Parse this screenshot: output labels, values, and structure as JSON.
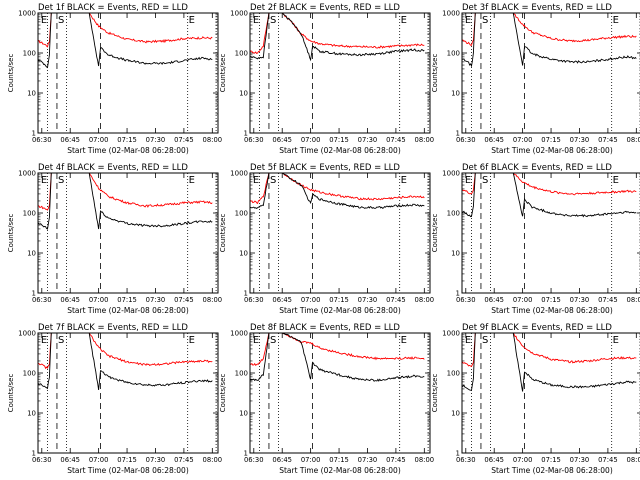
{
  "figure": {
    "background": "#ffffff"
  },
  "chart_data": [
    {
      "type": "line",
      "title": "Det 1f BLACK = Events, RED = LLD",
      "xlabel": "Start Time (02-Mar-08 06:28:00)",
      "ylabel": "Counts/sec",
      "xlim": [
        "06:28",
        "08:03"
      ],
      "ylim": [
        1,
        1000
      ],
      "yscale": "log",
      "xticks": [
        "06:30",
        "06:45",
        "07:00",
        "07:15",
        "07:30",
        "07:45",
        "08:00"
      ],
      "yticks": [
        "1",
        "10",
        "100",
        "1000"
      ],
      "annotations": [
        "E",
        "S",
        "E"
      ],
      "series": [
        {
          "color": "#ff0000",
          "x": [
            "06:28",
            "06:30",
            "06:33",
            "06:34",
            "06:35",
            "06:40",
            "06:55",
            "07:00",
            "07:05",
            "07:15",
            "07:25",
            "07:35",
            "07:45",
            "07:55",
            "08:00"
          ],
          "y": [
            200,
            180,
            150,
            190,
            1000,
            1000,
            1000,
            470,
            320,
            220,
            190,
            200,
            230,
            240,
            235
          ]
        },
        {
          "color": "#000000",
          "x": [
            "06:28",
            "06:30",
            "06:33",
            "06:34",
            "06:35",
            "06:40",
            "06:55",
            "07:00",
            "07:01",
            "07:05",
            "07:15",
            "07:25",
            "07:35",
            "07:45",
            "07:55",
            "08:00"
          ],
          "y": [
            65,
            60,
            45,
            90,
            1000,
            1000,
            1000,
            45,
            140,
            90,
            65,
            55,
            55,
            65,
            75,
            70
          ]
        }
      ]
    },
    {
      "type": "line",
      "title": "Det 2f BLACK = Events, RED = LLD",
      "xlabel": "Start Time (02-Mar-08 06:28:00)",
      "ylabel": "Counts/sec",
      "xlim": [
        "06:28",
        "08:03"
      ],
      "ylim": [
        1,
        1000
      ],
      "yscale": "log",
      "xticks": [
        "06:30",
        "06:45",
        "07:00",
        "07:15",
        "07:30",
        "07:45",
        "08:00"
      ],
      "yticks": [
        "1",
        "10",
        "100",
        "1000"
      ],
      "annotations": [
        "E",
        "S",
        "E"
      ],
      "series": [
        {
          "color": "#ff0000",
          "x": [
            "06:28",
            "06:32",
            "06:35",
            "06:38",
            "06:41",
            "06:45",
            "06:50",
            "06:55",
            "07:00",
            "07:05",
            "07:15",
            "07:25",
            "07:35",
            "07:45",
            "07:55",
            "08:00"
          ],
          "y": [
            110,
            100,
            150,
            1000,
            1000,
            1000,
            600,
            300,
            200,
            170,
            150,
            145,
            140,
            150,
            160,
            160
          ]
        },
        {
          "color": "#000000",
          "x": [
            "06:28",
            "06:32",
            "06:35",
            "06:38",
            "06:41",
            "06:45",
            "06:50",
            "06:55",
            "07:00",
            "07:01",
            "07:05",
            "07:15",
            "07:25",
            "07:35",
            "07:45",
            "07:55",
            "08:00"
          ],
          "y": [
            80,
            75,
            80,
            1000,
            1000,
            1000,
            600,
            300,
            70,
            150,
            110,
            95,
            90,
            95,
            110,
            120,
            115
          ]
        }
      ]
    },
    {
      "type": "line",
      "title": "Det 3f BLACK = Events, RED = LLD",
      "xlabel": "Start Time (02-Mar-08 06:28:00)",
      "ylabel": "Counts/sec",
      "xlim": [
        "06:28",
        "08:03"
      ],
      "ylim": [
        1,
        1000
      ],
      "yscale": "log",
      "xticks": [
        "06:30",
        "06:45",
        "07:00",
        "07:15",
        "07:30",
        "07:45",
        "08:00"
      ],
      "yticks": [
        "1",
        "10",
        "100",
        "1000"
      ],
      "annotations": [
        "E",
        "S",
        "E"
      ],
      "series": [
        {
          "color": "#ff0000",
          "x": [
            "06:28",
            "06:30",
            "06:33",
            "06:34",
            "06:35",
            "06:40",
            "06:55",
            "07:00",
            "07:05",
            "07:15",
            "07:25",
            "07:35",
            "07:45",
            "07:55",
            "08:00"
          ],
          "y": [
            210,
            190,
            160,
            200,
            1000,
            1000,
            1000,
            520,
            330,
            230,
            200,
            210,
            240,
            260,
            255
          ]
        },
        {
          "color": "#000000",
          "x": [
            "06:28",
            "06:30",
            "06:33",
            "06:34",
            "06:35",
            "06:40",
            "06:55",
            "07:00",
            "07:01",
            "07:05",
            "07:15",
            "07:25",
            "07:35",
            "07:45",
            "07:55",
            "08:00"
          ],
          "y": [
            70,
            65,
            48,
            95,
            1000,
            1000,
            1000,
            50,
            150,
            95,
            70,
            60,
            60,
            70,
            80,
            75
          ]
        }
      ]
    },
    {
      "type": "line",
      "title": "Det 4f BLACK = Events, RED = LLD",
      "xlabel": "Start Time (02-Mar-08 06:28:00)",
      "ylabel": "Counts/sec",
      "xlim": [
        "06:28",
        "08:03"
      ],
      "ylim": [
        1,
        1000
      ],
      "yscale": "log",
      "xticks": [
        "06:30",
        "06:45",
        "07:00",
        "07:15",
        "07:30",
        "07:45",
        "08:00"
      ],
      "yticks": [
        "1",
        "10",
        "100",
        "1000"
      ],
      "annotations": [
        "E",
        "S",
        "E"
      ],
      "series": [
        {
          "color": "#ff0000",
          "x": [
            "06:28",
            "06:30",
            "06:33",
            "06:34",
            "06:35",
            "06:40",
            "06:55",
            "07:00",
            "07:05",
            "07:15",
            "07:25",
            "07:35",
            "07:45",
            "07:55",
            "08:00"
          ],
          "y": [
            150,
            140,
            120,
            150,
            1000,
            1000,
            1000,
            420,
            260,
            180,
            150,
            160,
            180,
            190,
            180
          ]
        },
        {
          "color": "#000000",
          "x": [
            "06:28",
            "06:30",
            "06:33",
            "06:34",
            "06:35",
            "06:40",
            "06:55",
            "07:00",
            "07:01",
            "07:05",
            "07:15",
            "07:25",
            "07:35",
            "07:45",
            "07:55",
            "08:00"
          ],
          "y": [
            55,
            50,
            40,
            75,
            1000,
            1000,
            1000,
            40,
            110,
            75,
            55,
            48,
            48,
            55,
            62,
            60
          ]
        }
      ]
    },
    {
      "type": "line",
      "title": "Det 5f BLACK = Events, RED = LLD",
      "xlabel": "Start Time (02-Mar-08 06:28:00)",
      "ylabel": "Counts/sec",
      "xlim": [
        "06:28",
        "08:03"
      ],
      "ylim": [
        1,
        1000
      ],
      "yscale": "log",
      "xticks": [
        "06:30",
        "06:45",
        "07:00",
        "07:15",
        "07:30",
        "07:45",
        "08:00"
      ],
      "yticks": [
        "1",
        "10",
        "100",
        "1000"
      ],
      "annotations": [
        "E",
        "S",
        "E"
      ],
      "series": [
        {
          "color": "#ff0000",
          "x": [
            "06:28",
            "06:32",
            "06:35",
            "06:38",
            "06:41",
            "06:45",
            "06:50",
            "06:55",
            "07:00",
            "07:05",
            "07:15",
            "07:25",
            "07:35",
            "07:45",
            "07:55",
            "08:00"
          ],
          "y": [
            200,
            180,
            260,
            1000,
            1000,
            1000,
            700,
            500,
            380,
            330,
            270,
            230,
            220,
            240,
            260,
            250
          ]
        },
        {
          "color": "#000000",
          "x": [
            "06:28",
            "06:32",
            "06:35",
            "06:38",
            "06:41",
            "06:45",
            "06:50",
            "06:55",
            "07:00",
            "07:01",
            "07:05",
            "07:15",
            "07:25",
            "07:35",
            "07:45",
            "07:55",
            "08:00"
          ],
          "y": [
            140,
            130,
            160,
            1000,
            1000,
            1000,
            700,
            500,
            170,
            290,
            220,
            170,
            140,
            135,
            150,
            160,
            150
          ]
        }
      ]
    },
    {
      "type": "line",
      "title": "Det 6f BLACK = Events, RED = LLD",
      "xlabel": "Start Time (02-Mar-08 06:28:00)",
      "ylabel": "Counts/sec",
      "xlim": [
        "06:28",
        "08:03"
      ],
      "ylim": [
        1,
        1000
      ],
      "yscale": "log",
      "xticks": [
        "06:30",
        "06:45",
        "07:00",
        "07:15",
        "07:30",
        "07:45",
        "08:00"
      ],
      "yticks": [
        "1",
        "10",
        "100",
        "1000"
      ],
      "annotations": [
        "E",
        "S",
        "E"
      ],
      "series": [
        {
          "color": "#ff0000",
          "x": [
            "06:28",
            "06:30",
            "06:33",
            "06:34",
            "06:35",
            "06:40",
            "06:55",
            "07:00",
            "07:05",
            "07:15",
            "07:25",
            "07:35",
            "07:45",
            "07:55",
            "08:00"
          ],
          "y": [
            380,
            350,
            300,
            380,
            1000,
            1000,
            1000,
            600,
            450,
            340,
            300,
            310,
            330,
            350,
            340
          ]
        },
        {
          "color": "#000000",
          "x": [
            "06:28",
            "06:30",
            "06:33",
            "06:34",
            "06:35",
            "06:40",
            "06:55",
            "07:00",
            "07:01",
            "07:05",
            "07:15",
            "07:25",
            "07:35",
            "07:45",
            "07:55",
            "08:00"
          ],
          "y": [
            110,
            100,
            80,
            150,
            1000,
            1000,
            1000,
            80,
            220,
            140,
            100,
            85,
            85,
            95,
            105,
            100
          ]
        }
      ]
    },
    {
      "type": "line",
      "title": "Det 7f BLACK = Events, RED = LLD",
      "xlabel": "Start Time (02-Mar-08 06:28:00)",
      "ylabel": "Counts/sec",
      "xlim": [
        "06:28",
        "08:03"
      ],
      "ylim": [
        1,
        1000
      ],
      "yscale": "log",
      "xticks": [
        "06:30",
        "06:45",
        "07:00",
        "07:15",
        "07:30",
        "07:45",
        "08:00"
      ],
      "yticks": [
        "1",
        "10",
        "100",
        "1000"
      ],
      "annotations": [
        "E",
        "S",
        "E"
      ],
      "series": [
        {
          "color": "#ff0000",
          "x": [
            "06:28",
            "06:30",
            "06:33",
            "06:34",
            "06:35",
            "06:40",
            "06:55",
            "07:00",
            "07:05",
            "07:15",
            "07:25",
            "07:35",
            "07:45",
            "07:55",
            "08:00"
          ],
          "y": [
            180,
            160,
            130,
            170,
            1000,
            1000,
            1000,
            430,
            270,
            190,
            160,
            170,
            190,
            200,
            195
          ]
        },
        {
          "color": "#000000",
          "x": [
            "06:28",
            "06:30",
            "06:33",
            "06:34",
            "06:35",
            "06:40",
            "06:55",
            "07:00",
            "07:01",
            "07:05",
            "07:15",
            "07:25",
            "07:35",
            "07:45",
            "07:55",
            "08:00"
          ],
          "y": [
            55,
            50,
            40,
            80,
            1000,
            1000,
            1000,
            40,
            120,
            80,
            58,
            50,
            50,
            58,
            65,
            62
          ]
        }
      ]
    },
    {
      "type": "line",
      "title": "Det 8f BLACK = Events, RED = LLD",
      "xlabel": "Start Time (02-Mar-08 06:28:00)",
      "ylabel": "Counts/sec",
      "xlim": [
        "06:28",
        "08:03"
      ],
      "ylim": [
        1,
        1000
      ],
      "yscale": "log",
      "xticks": [
        "06:30",
        "06:45",
        "07:00",
        "07:15",
        "07:30",
        "07:45",
        "08:00"
      ],
      "yticks": [
        "1",
        "10",
        "100",
        "1000"
      ],
      "annotations": [
        "E",
        "S",
        "E"
      ],
      "series": [
        {
          "color": "#ff0000",
          "x": [
            "06:28",
            "06:32",
            "06:35",
            "06:38",
            "06:41",
            "06:45",
            "06:50",
            "06:55",
            "07:00",
            "07:05",
            "07:15",
            "07:25",
            "07:35",
            "07:45",
            "07:55",
            "08:00"
          ],
          "y": [
            170,
            160,
            230,
            1000,
            1000,
            1000,
            800,
            600,
            560,
            420,
            320,
            260,
            230,
            230,
            240,
            230
          ]
        },
        {
          "color": "#000000",
          "x": [
            "06:28",
            "06:32",
            "06:35",
            "06:38",
            "06:41",
            "06:45",
            "06:50",
            "06:55",
            "07:00",
            "07:01",
            "07:05",
            "07:15",
            "07:25",
            "07:35",
            "07:45",
            "07:55",
            "08:00"
          ],
          "y": [
            70,
            65,
            90,
            1000,
            1000,
            1000,
            800,
            600,
            70,
            180,
            120,
            90,
            70,
            65,
            75,
            85,
            80
          ]
        }
      ]
    },
    {
      "type": "line",
      "title": "Det 9f BLACK = Events, RED = LLD",
      "xlabel": "Start Time (02-Mar-08 06:28:00)",
      "ylabel": "Counts/sec",
      "xlim": [
        "06:28",
        "08:03"
      ],
      "ylim": [
        1,
        1000
      ],
      "yscale": "log",
      "xticks": [
        "06:30",
        "06:45",
        "07:00",
        "07:15",
        "07:30",
        "07:45",
        "08:00"
      ],
      "yticks": [
        "1",
        "10",
        "100",
        "1000"
      ],
      "annotations": [
        "E",
        "S",
        "E"
      ],
      "series": [
        {
          "color": "#ff0000",
          "x": [
            "06:28",
            "06:30",
            "06:33",
            "06:34",
            "06:35",
            "06:40",
            "06:55",
            "07:00",
            "07:05",
            "07:15",
            "07:25",
            "07:35",
            "07:45",
            "07:55",
            "08:00"
          ],
          "y": [
            190,
            170,
            140,
            180,
            1000,
            1000,
            1000,
            480,
            320,
            220,
            190,
            200,
            230,
            240,
            230
          ]
        },
        {
          "color": "#000000",
          "x": [
            "06:28",
            "06:30",
            "06:33",
            "06:34",
            "06:35",
            "06:40",
            "06:55",
            "07:00",
            "07:01",
            "07:05",
            "07:15",
            "07:25",
            "07:35",
            "07:45",
            "07:55",
            "08:00"
          ],
          "y": [
            50,
            45,
            35,
            70,
            1000,
            1000,
            1000,
            35,
            110,
            70,
            50,
            45,
            45,
            52,
            60,
            58
          ]
        }
      ]
    }
  ]
}
